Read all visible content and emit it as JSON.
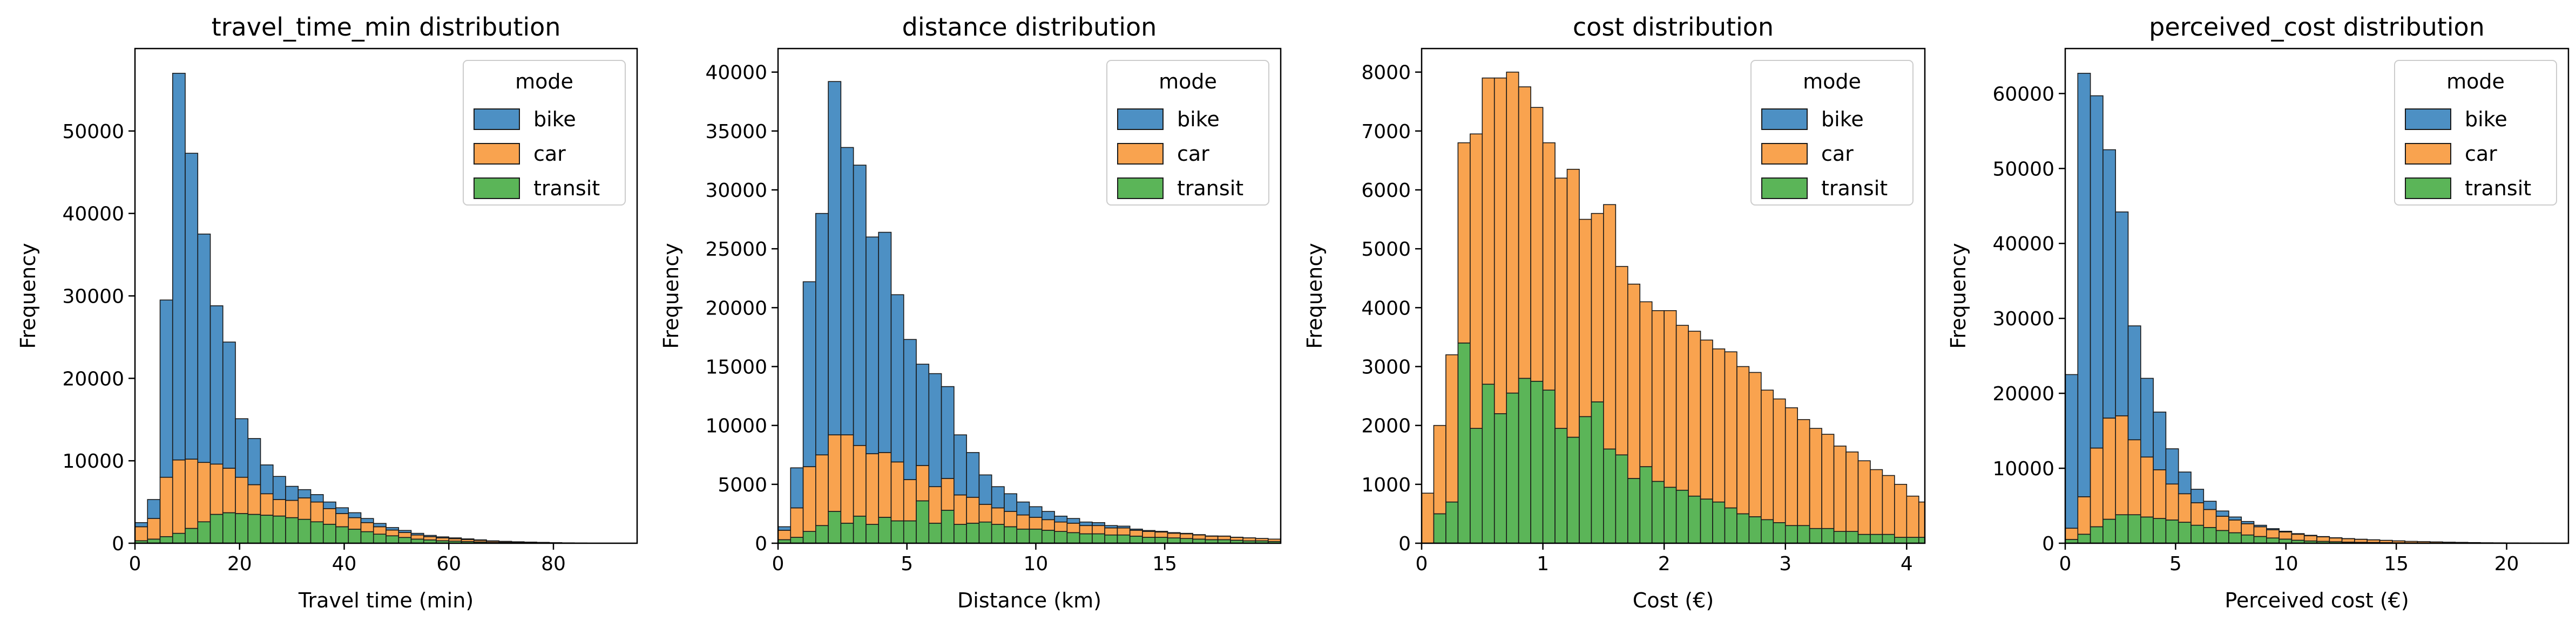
{
  "colors": {
    "bike": "#3e87bf",
    "car": "#f89b40",
    "transit": "#4daf4a"
  },
  "chart_data": [
    {
      "type": "bar",
      "stacked": true,
      "title": "travel_time_min distribution",
      "xlabel": "Travel time (min)",
      "ylabel": "Frequency",
      "xlim": [
        0,
        96
      ],
      "ylim": [
        0,
        60000
      ],
      "xticks": [
        0,
        20,
        40,
        60,
        80
      ],
      "yticks": [
        0,
        10000,
        20000,
        30000,
        40000,
        50000
      ],
      "bin_width": 2.4,
      "legend": {
        "title": "mode",
        "placement": "top-right",
        "entries": [
          "bike",
          "car",
          "transit"
        ]
      },
      "series": [
        {
          "name": "transit",
          "color": "#4daf4a",
          "values": [
            300,
            500,
            800,
            1200,
            1800,
            2600,
            3500,
            3700,
            3600,
            3500,
            3400,
            3300,
            3100,
            2900,
            2600,
            2300,
            2000,
            1700,
            1400,
            1100,
            900,
            700,
            500,
            400,
            300,
            250,
            200,
            150,
            100,
            80,
            60,
            40,
            30,
            20,
            10,
            5,
            5,
            0,
            0,
            0
          ]
        },
        {
          "name": "car",
          "color": "#f89b40",
          "values": [
            1700,
            2500,
            7200,
            8900,
            8400,
            7200,
            6100,
            5400,
            4400,
            3600,
            2600,
            2000,
            2100,
            2600,
            2400,
            1900,
            1600,
            1400,
            1100,
            900,
            700,
            600,
            500,
            400,
            350,
            300,
            250,
            200,
            150,
            120,
            100,
            80,
            60,
            40,
            30,
            20,
            10,
            5,
            5,
            0
          ]
        },
        {
          "name": "bike",
          "color": "#3e87bf",
          "values": [
            500,
            2300,
            21500,
            46900,
            37100,
            27700,
            19200,
            15300,
            7100,
            5600,
            3500,
            2800,
            1700,
            1000,
            900,
            800,
            700,
            600,
            500,
            400,
            300,
            250,
            200,
            150,
            120,
            100,
            80,
            60,
            40,
            30,
            20,
            15,
            10,
            5,
            5,
            0,
            0,
            0,
            0,
            0
          ]
        }
      ]
    },
    {
      "type": "bar",
      "stacked": true,
      "title": "distance distribution",
      "xlabel": "Distance (km)",
      "ylabel": "Frequency",
      "xlim": [
        0,
        19.5
      ],
      "ylim": [
        0,
        42000
      ],
      "xticks": [
        0,
        5,
        10,
        15
      ],
      "yticks": [
        0,
        5000,
        10000,
        15000,
        20000,
        25000,
        30000,
        35000,
        40000
      ],
      "bin_width": 0.4875,
      "legend": {
        "title": "mode",
        "placement": "top-right",
        "entries": [
          "bike",
          "car",
          "transit"
        ]
      },
      "series": [
        {
          "name": "transit",
          "color": "#4daf4a",
          "values": [
            300,
            500,
            1000,
            1500,
            2700,
            1700,
            2300,
            1600,
            2200,
            1900,
            1900,
            3600,
            1700,
            2800,
            1600,
            1700,
            1800,
            1600,
            1400,
            1200,
            1200,
            1100,
            1000,
            900,
            800,
            800,
            700,
            700,
            600,
            500,
            500,
            450,
            400,
            350,
            300,
            300,
            250,
            200,
            200,
            150
          ]
        },
        {
          "name": "car",
          "color": "#f89b40",
          "values": [
            800,
            2500,
            5500,
            6000,
            6500,
            7500,
            6000,
            6000,
            5500,
            5000,
            3500,
            3000,
            3100,
            2700,
            2500,
            2200,
            1500,
            1400,
            1300,
            1200,
            1000,
            900,
            800,
            800,
            700,
            700,
            600,
            600,
            500,
            500,
            450,
            400,
            400,
            350,
            300,
            300,
            250,
            250,
            200,
            200
          ]
        },
        {
          "name": "bike",
          "color": "#3e87bf",
          "values": [
            300,
            3400,
            15700,
            20500,
            30000,
            24400,
            23800,
            18400,
            18700,
            14200,
            11900,
            8600,
            9600,
            7800,
            5100,
            3800,
            2500,
            1800,
            1500,
            1100,
            900,
            700,
            500,
            400,
            300,
            250,
            200,
            150,
            100,
            80,
            60,
            50,
            40,
            30,
            20,
            10,
            10,
            5,
            5,
            0
          ]
        }
      ]
    },
    {
      "type": "bar",
      "stacked": true,
      "title": "cost distribution",
      "xlabel": "Cost (€)",
      "ylabel": "Frequency",
      "xlim": [
        0,
        4.15
      ],
      "ylim": [
        0,
        8400
      ],
      "xticks": [
        0,
        1,
        2,
        3,
        4
      ],
      "yticks": [
        0,
        1000,
        2000,
        3000,
        4000,
        5000,
        6000,
        7000,
        8000
      ],
      "bin_width": 0.1,
      "legend": {
        "title": "mode",
        "placement": "top-right",
        "entries": [
          "bike",
          "car",
          "transit"
        ]
      },
      "series": [
        {
          "name": "transit",
          "color": "#4daf4a",
          "values": [
            0,
            500,
            700,
            3400,
            1950,
            2700,
            2200,
            2550,
            2800,
            2750,
            2600,
            1950,
            1800,
            2150,
            2400,
            1600,
            1500,
            1100,
            1300,
            1050,
            950,
            900,
            800,
            750,
            700,
            600,
            500,
            450,
            400,
            350,
            300,
            300,
            250,
            250,
            200,
            200,
            150,
            150,
            150,
            100,
            100,
            100
          ]
        },
        {
          "name": "car",
          "color": "#f89b40",
          "values": [
            850,
            1500,
            2500,
            3400,
            5000,
            5200,
            5700,
            5450,
            4950,
            4650,
            4200,
            4250,
            4550,
            3350,
            3200,
            4150,
            3200,
            3300,
            2800,
            2900,
            3000,
            2800,
            2800,
            2700,
            2600,
            2650,
            2500,
            2450,
            2200,
            2100,
            2000,
            1800,
            1700,
            1600,
            1450,
            1350,
            1250,
            1100,
            1000,
            900,
            700,
            600
          ]
        },
        {
          "name": "bike",
          "color": "#3e87bf",
          "values": [
            0,
            0,
            0,
            0,
            0,
            0,
            0,
            0,
            0,
            0,
            0,
            0,
            0,
            0,
            0,
            0,
            0,
            0,
            0,
            0,
            0,
            0,
            0,
            0,
            0,
            0,
            0,
            0,
            0,
            0,
            0,
            0,
            0,
            0,
            0,
            0,
            0,
            0,
            0,
            0,
            0,
            0
          ]
        }
      ]
    },
    {
      "type": "bar",
      "stacked": true,
      "title": "perceived_cost distribution",
      "xlabel": "Perceived cost (€)",
      "ylabel": "Frequency",
      "xlim": [
        0,
        22.8
      ],
      "ylim": [
        0,
        66000
      ],
      "xticks": [
        0,
        5,
        10,
        15,
        20
      ],
      "yticks": [
        0,
        10000,
        20000,
        30000,
        40000,
        50000,
        60000
      ],
      "bin_width": 0.57,
      "legend": {
        "title": "mode",
        "placement": "top-right",
        "entries": [
          "bike",
          "car",
          "transit"
        ]
      },
      "series": [
        {
          "name": "transit",
          "color": "#4daf4a",
          "values": [
            500,
            1200,
            2200,
            3200,
            3800,
            3800,
            3500,
            3300,
            3100,
            2800,
            2400,
            2100,
            1700,
            1400,
            1100,
            900,
            700,
            550,
            400,
            300,
            250,
            200,
            150,
            120,
            100,
            80,
            60,
            50,
            40,
            30,
            20,
            15,
            10,
            5,
            5,
            0,
            0,
            0,
            0,
            0
          ]
        },
        {
          "name": "car",
          "color": "#f89b40",
          "values": [
            1500,
            5000,
            10500,
            13500,
            13200,
            10000,
            8000,
            6500,
            4800,
            3800,
            3000,
            2400,
            1900,
            1700,
            1500,
            1300,
            1100,
            950,
            800,
            700,
            600,
            500,
            450,
            400,
            350,
            300,
            250,
            200,
            180,
            150,
            120,
            100,
            80,
            60,
            50,
            40,
            30,
            25,
            20,
            15
          ]
        },
        {
          "name": "bike",
          "color": "#3e87bf",
          "values": [
            20500,
            56500,
            47000,
            35800,
            27200,
            15200,
            10500,
            7700,
            4700,
            2900,
            1800,
            1100,
            700,
            400,
            300,
            200,
            150,
            100,
            80,
            60,
            40,
            30,
            20,
            15,
            10,
            5,
            5,
            0,
            0,
            0,
            0,
            0,
            0,
            0,
            0,
            0,
            0,
            0,
            0,
            0
          ]
        }
      ]
    }
  ]
}
